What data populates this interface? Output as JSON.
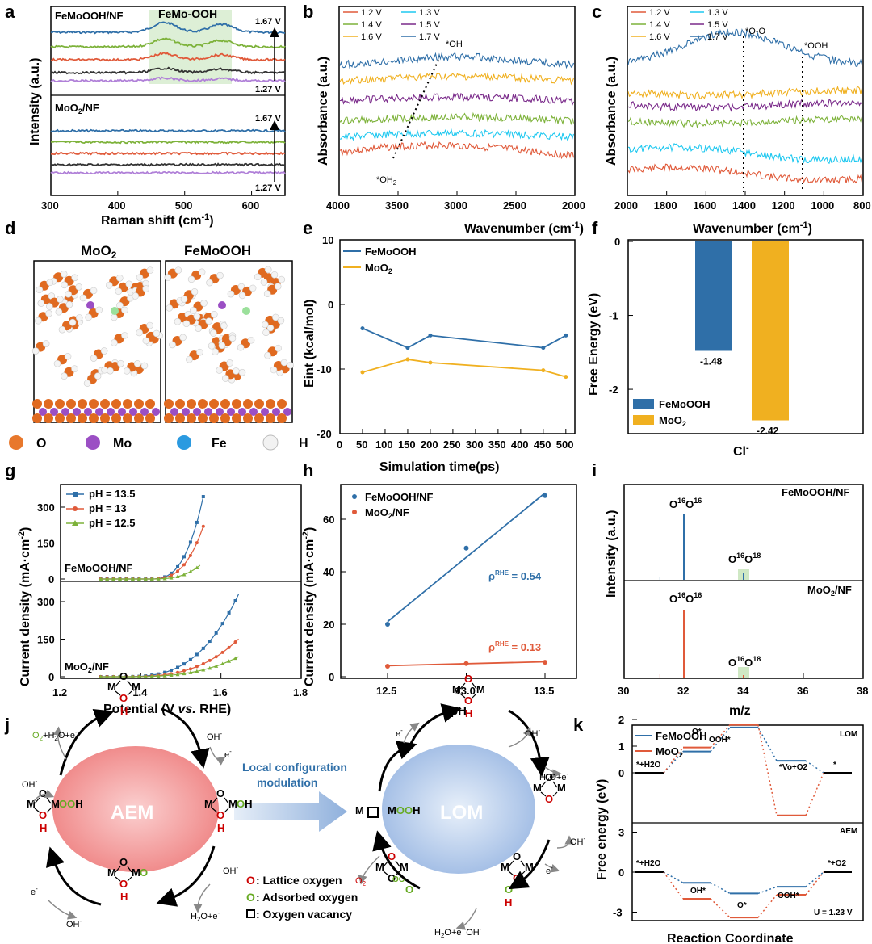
{
  "panel_letters": [
    "a",
    "b",
    "c",
    "d",
    "e",
    "f",
    "g",
    "h",
    "i",
    "j",
    "k"
  ],
  "colors": {
    "v12": "#e05a3a",
    "v13": "#1ec8f0",
    "v14": "#7db23a",
    "v15": "#7a2a8a",
    "v16": "#f0b020",
    "v17": "#2f6fa8",
    "blue": "#2f6fa8",
    "orange": "#e05a3a",
    "gold": "#f0b020",
    "green": "#7db23a",
    "lattice_o": "#cc0000",
    "ads_o": "#66aa22",
    "aem_fill": "#f08a8a",
    "lom_fill": "#a8c4e8",
    "box_green": "#cfe8c4"
  },
  "chart_data": [
    {
      "id": "a",
      "type": "line",
      "xlabel": "Raman shift (cm-1)",
      "ylabel": "Intensity (a.u.)",
      "xlim": [
        300,
        650
      ],
      "xticks": [
        300,
        400,
        500,
        600
      ],
      "top_label": "FeMoOOH/NF",
      "bottom_label": "MoO2/NF",
      "highlight_label": "FeMo-OOH",
      "highlight_range": [
        450,
        570
      ],
      "arrow_top": "1.67 V",
      "arrow_bottom": "1.27 V",
      "series_colors": [
        "#2f6fa8",
        "#7db23a",
        "#e05a3a",
        "#333333",
        "#b080d8"
      ]
    },
    {
      "id": "b",
      "type": "line",
      "xlabel": "Wavenumber (cm-1)",
      "ylabel": "Absorbance (a.u.)",
      "xlim": [
        4000,
        2000
      ],
      "xticks": [
        4000,
        3500,
        3000,
        2500,
        2000
      ],
      "legend": [
        "1.2 V",
        "1.3 V",
        "1.4 V",
        "1.5 V",
        "1.6 V",
        "1.7 V"
      ],
      "annotations": [
        "*OH",
        "*OH2"
      ]
    },
    {
      "id": "c",
      "type": "line",
      "xlabel": "Wavenumber (cm-1)",
      "ylabel": "Absorbance (a.u.)",
      "xlim": [
        2000,
        800
      ],
      "xticks": [
        2000,
        1800,
        1600,
        1400,
        1200,
        1000,
        800
      ],
      "legend": [
        "1.2 V",
        "1.3 V",
        "1.4 V",
        "1.5 V",
        "1.6 V",
        "1.7 V"
      ],
      "annotations": [
        "*O-O",
        "*OOH"
      ],
      "marker_lines": [
        1400,
        1100
      ]
    },
    {
      "id": "e",
      "type": "line",
      "xlabel": "Simulation time(ps)",
      "ylabel": "Eint (kcal/mol)",
      "xlim": [
        0,
        520
      ],
      "ylim": [
        -20,
        10
      ],
      "xticks": [
        0,
        50,
        100,
        150,
        200,
        250,
        300,
        350,
        400,
        450,
        500
      ],
      "yticks": [
        -20,
        -10,
        0,
        10
      ],
      "x": [
        50,
        150,
        200,
        450,
        500
      ],
      "series": [
        {
          "name": "FeMoOOH",
          "values": [
            -3.7,
            -6.7,
            -4.8,
            -6.7,
            -4.8
          ]
        },
        {
          "name": "MoO2",
          "values": [
            -10.5,
            -8.5,
            -9.0,
            -10.2,
            -11.2
          ]
        }
      ]
    },
    {
      "id": "f",
      "type": "bar",
      "xlabel": "Cl-",
      "ylabel": "Free Energy (eV)",
      "ylim": [
        -2.6,
        0
      ],
      "yticks": [
        0,
        -1,
        -2
      ],
      "categories": [
        "FeMoOOH",
        "MoO2"
      ],
      "values": [
        -1.48,
        -2.42
      ],
      "value_labels": [
        "-1.48",
        "-2.42"
      ]
    },
    {
      "id": "g",
      "type": "line",
      "xlabel": "Potential (V vs. RHE)",
      "ylabel": "Current density (mA·cm-2)",
      "xlim": [
        1.2,
        1.8
      ],
      "xticks": [
        1.2,
        1.4,
        1.6,
        1.8
      ],
      "yticks": [
        0,
        150,
        300
      ],
      "top_label": "FeMoOOH/NF",
      "bottom_label": "MoO2/NF",
      "legend": [
        "pH = 13.5",
        "pH = 13",
        "pH = 12.5"
      ]
    },
    {
      "id": "h",
      "type": "scatter",
      "xlabel": "pH",
      "ylabel": "Current density (mA·cm-2)",
      "xlim": [
        12.5,
        13.5
      ],
      "ylim": [
        0,
        72
      ],
      "xticks": [
        12.5,
        13.0,
        13.5
      ],
      "yticks": [
        0,
        20,
        40,
        60
      ],
      "x": [
        12.5,
        13.0,
        13.5
      ],
      "series": [
        {
          "name": "FeMoOOH/NF",
          "values": [
            20,
            49,
            69
          ]
        },
        {
          "name": "MoO2/NF",
          "values": [
            4,
            5,
            5.5
          ]
        }
      ],
      "annotations": [
        "ρRHE = 0.54",
        "ρRHE = 0.13"
      ]
    },
    {
      "id": "i",
      "type": "bar",
      "xlabel": "m/z",
      "ylabel": "Intensity (a.u.)",
      "xlim": [
        30,
        38
      ],
      "xticks": [
        30,
        32,
        34,
        36,
        38
      ],
      "top_label": "FeMoOOH/NF",
      "bottom_label": "MoO2/NF",
      "peak_labels": [
        "O16O16",
        "O16O18"
      ]
    },
    {
      "id": "k",
      "type": "line",
      "xlabel": "Reaction Coordinate",
      "ylabel": "Free energy (eV)",
      "legend": [
        "FeMoOOH",
        "MoO2"
      ],
      "lom_yticks": [
        0,
        1,
        2
      ],
      "aem_yticks": [
        -3,
        0,
        3
      ],
      "lom_tag": "LOM",
      "aem_tag": "AEM",
      "u_label": "U = 1.23 V",
      "lom_states": [
        "*+H2O",
        "O*",
        "OOH*",
        "*Vo+O2",
        "*"
      ],
      "aem_states": [
        "*+H2O",
        "OH*",
        "O*",
        "OOH*",
        "*+O2"
      ],
      "lom_values": {
        "FeMoOOH": [
          0,
          0.8,
          1.7,
          0.45,
          0
        ],
        "MoO2": [
          0,
          0.95,
          1.8,
          -1.6,
          0
        ]
      },
      "aem_values": {
        "FeMoOOH": [
          0,
          -0.8,
          -1.6,
          -1.1,
          0
        ],
        "MoO2": [
          0,
          -2.0,
          -3.4,
          -1.7,
          0
        ]
      }
    }
  ],
  "panel_d": {
    "titles": [
      "MoO2",
      "FeMoOOH"
    ],
    "legend": [
      "O",
      "Mo",
      "Fe",
      "H"
    ]
  },
  "panel_j": {
    "left_center": "AEM",
    "right_center": "LOM",
    "arrow_text": [
      "Local configuration",
      "modulation"
    ],
    "key": [
      ": Lattice oxygen",
      ": Adsorbed oxygen",
      ": Oxygen vacancy"
    ],
    "species": [
      "O2+H2O+e-",
      "OH-",
      "e-",
      "H2O+e-",
      "O2"
    ]
  }
}
